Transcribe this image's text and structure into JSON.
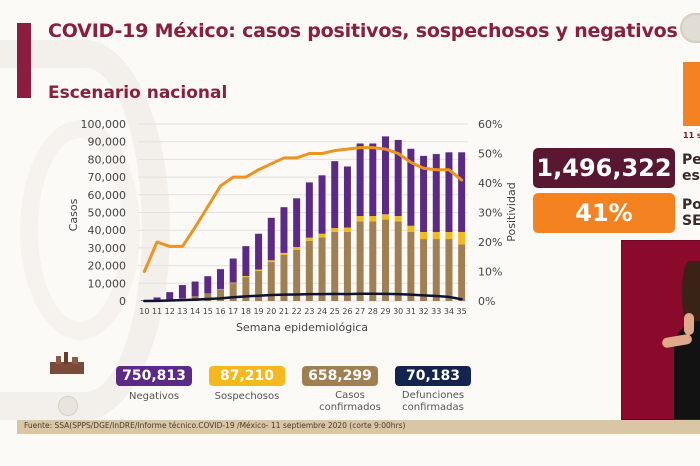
{
  "header": {
    "title": "COVID-19 México: casos positivos, sospechosos y negativos",
    "subtitle": "Escenario nacional"
  },
  "right_panel": {
    "date_fragment": "11 se",
    "kpi_total": "1,496,322",
    "kpi_total_label_line1": "Pe",
    "kpi_total_label_line2": "es",
    "kpi_positivity": "41%",
    "kpi_positivity_label_line1": "Po",
    "kpi_positivity_label_line2": "SE"
  },
  "stats": [
    {
      "value": "750,813",
      "label": "Negativos",
      "color": "#5b2a86"
    },
    {
      "value": "87,210",
      "label": "Sospechosos",
      "color": "#f5b91e"
    },
    {
      "value": "658,299",
      "label": "Casos confirmados",
      "color": "#a08052"
    },
    {
      "value": "70,183",
      "label": "Defunciones confirmadas",
      "color": "#15244f"
    }
  ],
  "footer": {
    "source": "Fuente: SSA(SPPS/DGE/InDRE/Informe técnico.COVID-19 /México- 11 septiembre 2020 (corte 9:00hrs)"
  },
  "chart_data": {
    "type": "bar",
    "stacked": true,
    "xlabel": "Semana epidemiológica",
    "ylabel": "Casos",
    "y2label": "Positividad",
    "ylim": [
      0,
      100000
    ],
    "y2lim": [
      0,
      60
    ],
    "yticks": [
      "0",
      "10,000",
      "20,000",
      "30,000",
      "40,000",
      "50,000",
      "60,000",
      "70,000",
      "80,000",
      "90,000",
      "100,000"
    ],
    "y2ticks": [
      "0%",
      "10%",
      "20%",
      "30%",
      "40%",
      "50%",
      "60%"
    ],
    "grid": true,
    "categories": [
      "10",
      "11",
      "12",
      "13",
      "14",
      "15",
      "16",
      "17",
      "18",
      "19",
      "20",
      "21",
      "22",
      "23",
      "24",
      "25",
      "26",
      "27",
      "28",
      "29",
      "30",
      "31",
      "32",
      "33",
      "34",
      "35"
    ],
    "series": [
      {
        "name": "Casos confirmados",
        "kind": "bar",
        "color": "#a08052",
        "values": [
          300,
          600,
          900,
          1500,
          2500,
          4000,
          6500,
          10000,
          13500,
          17000,
          22000,
          26000,
          29000,
          34000,
          36000,
          39000,
          39000,
          45000,
          45000,
          46000,
          45000,
          39000,
          35000,
          35000,
          35000,
          32000
        ]
      },
      {
        "name": "Sospechosos",
        "kind": "bar",
        "color": "#f5b91e",
        "values": [
          0,
          0,
          0,
          0,
          100,
          200,
          300,
          400,
          600,
          800,
          1000,
          1200,
          1500,
          1800,
          2000,
          2200,
          2500,
          3000,
          3000,
          3000,
          3000,
          3500,
          4000,
          4000,
          4000,
          7000
        ]
      },
      {
        "name": "Negativos",
        "kind": "bar",
        "color": "#5b2a86",
        "values": [
          200,
          1400,
          4100,
          7500,
          8400,
          9800,
          11200,
          13600,
          16900,
          20200,
          24000,
          25800,
          27500,
          31200,
          33000,
          37800,
          34500,
          41000,
          41000,
          44000,
          43000,
          43500,
          43000,
          44000,
          45000,
          45000
        ]
      },
      {
        "name": "Defunciones",
        "kind": "line",
        "axis": "left",
        "color": "#0d1333",
        "values": [
          0,
          100,
          300,
          500,
          800,
          1100,
          1500,
          2100,
          2600,
          3000,
          3400,
          3600,
          3700,
          3900,
          3900,
          4000,
          3900,
          4100,
          4100,
          4000,
          3900,
          3600,
          3200,
          2800,
          2300,
          1000
        ]
      },
      {
        "name": "Positividad",
        "kind": "line",
        "axis": "right",
        "color": "#f0921e",
        "values": [
          10,
          20,
          18.5,
          18.5,
          25,
          32,
          39,
          42,
          42,
          44.5,
          46.5,
          48.5,
          48.5,
          50,
          50,
          51,
          51.5,
          52,
          52,
          51.5,
          50,
          47,
          45,
          44.5,
          44.5,
          41
        ]
      }
    ]
  }
}
